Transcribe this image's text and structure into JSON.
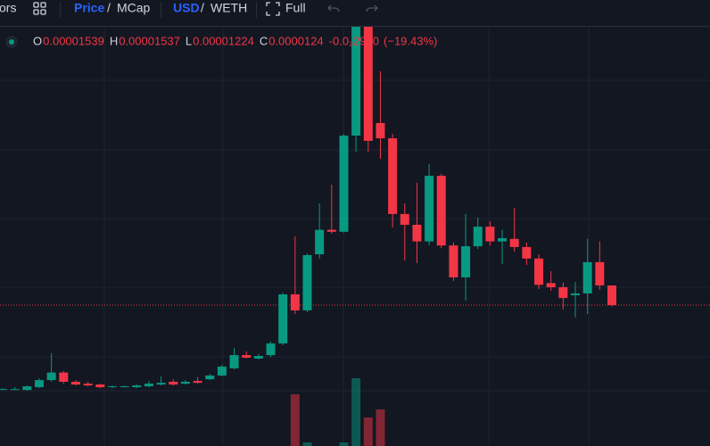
{
  "toolbar": {
    "indicators": "ors",
    "price": "Price",
    "sep1": "/",
    "mcap": "MCap",
    "usd": "USD",
    "sep2": "/",
    "weth": "WETH",
    "full": "Full"
  },
  "chart_data": {
    "type": "candlestick",
    "legend": {
      "labels": [
        "O",
        "H",
        "L",
        "C"
      ],
      "change": "-0.0₂2990",
      "change_pct": "(−19.43%)"
    },
    "log_scale": true,
    "ylim": [
      2.628e-06,
      0.0002656
    ],
    "up_color": "#089981",
    "down_color": "#f23645",
    "open": [
      4.92e-06,
      4.92e-06,
      4.87e-06,
      5.02e-06,
      5.43e-06,
      5.9e-06,
      5.33e-06,
      5.22e-06,
      5.17e-06,
      5.02e-06,
      5.07e-06,
      5.02e-06,
      5.07e-06,
      5.17e-06,
      5.33e-06,
      5.22e-06,
      5.38e-06,
      5.48e-06,
      5.71e-06,
      6.18e-06,
      7.15e-06,
      6.88e-06,
      7.15e-06,
      8.13e-06,
      1.396e-05,
      1.17e-05,
      2.17e-05,
      2.84e-05,
      2.78e-05,
      8.015e-05,
      0.0002656,
      9.2e-05,
      7.78e-05,
      3.38e-05,
      3.002e-05,
      2.5e-05,
      5.15e-05,
      2.39e-05,
      1.682e-05,
      2.37e-05,
      2.94e-05,
      2.5e-05,
      2.57e-05,
      2.35e-05,
      2.07e-05,
      1.58e-05,
      1.509e-05,
      1.382e-05,
      1.41e-05,
      1.99e-05,
      1.539e-05
    ],
    "high": [
      4.97e-06,
      5.02e-06,
      5.12e-06,
      5.54e-06,
      7.3e-06,
      6e-06,
      5.43e-06,
      5.33e-06,
      5.22e-06,
      5.12e-06,
      5.12e-06,
      5.17e-06,
      5.38e-06,
      5.65e-06,
      5.48e-06,
      5.43e-06,
      5.6e-06,
      5.82e-06,
      6.43e-06,
      7.74e-06,
      7.45e-06,
      7.23e-06,
      8.29e-06,
      1.424e-05,
      2.64e-05,
      2.19e-05,
      3.8e-05,
      4.67e-05,
      8.17e-05,
      0.0002656,
      0.0002656,
      0.0001626,
      8.17e-05,
      3.8e-05,
      4.76e-05,
      5.85e-05,
      5.26e-05,
      2.466e-05,
      3.38e-05,
      3.25e-05,
      3.12e-05,
      2.84e-05,
      3.62e-05,
      2.466e-05,
      2.17e-05,
      1.8e-05,
      1.59e-05,
      1.6e-05,
      2.57e-05,
      2.5e-05,
      1.537e-05
    ],
    "low": [
      4.87e-06,
      4.87e-06,
      4.83e-06,
      4.97e-06,
      5.33e-06,
      5.22e-06,
      5.12e-06,
      5.07e-06,
      4.97e-06,
      4.97e-06,
      5.02e-06,
      4.97e-06,
      5.02e-06,
      5.12e-06,
      5.12e-06,
      5.17e-06,
      5.22e-06,
      5.43e-06,
      5.65e-06,
      6.12e-06,
      6.88e-06,
      6.82e-06,
      7.01e-06,
      7.97e-06,
      1.124e-05,
      1.147e-05,
      2.07e-05,
      2.721e-05,
      2.75e-05,
      6.72e-05,
      6.72e-05,
      6.21e-05,
      2.91e-05,
      2.026e-05,
      1.97e-05,
      2.39e-05,
      2.32e-05,
      1.618e-05,
      1.3e-05,
      2.3e-05,
      2.39e-05,
      1.95e-05,
      2.236e-05,
      1.93e-05,
      1.48e-05,
      1.45e-05,
      1.18e-05,
      1.08e-05,
      1.124e-05,
      1.47e-05,
      1.224e-05
    ],
    "close": [
      4.92e-06,
      4.92e-06,
      5.07e-06,
      5.43e-06,
      5.9e-06,
      5.33e-06,
      5.17e-06,
      5.12e-06,
      5.02e-06,
      5.07e-06,
      5.07e-06,
      5.12e-06,
      5.22e-06,
      5.27e-06,
      5.17e-06,
      5.33e-06,
      5.27e-06,
      5.71e-06,
      6.3e-06,
      7.15e-06,
      6.95e-06,
      7.08e-06,
      8.13e-06,
      1.396e-05,
      1.17e-05,
      2.15e-05,
      2.84e-05,
      2.78e-05,
      8.015e-05,
      0.0002656,
      7.56e-05,
      7.78e-05,
      3.38e-05,
      3.002e-05,
      2.5e-05,
      5.15e-05,
      2.39e-05,
      1.682e-05,
      2.37e-05,
      2.94e-05,
      2.5e-05,
      2.59e-05,
      2.35e-05,
      2.07e-05,
      1.55e-05,
      1.509e-05,
      1.34e-05,
      1.41e-05,
      1.99e-05,
      1.54e-05,
      1.24e-05
    ],
    "volume_lim": [
      0,
      100
    ],
    "volume": [
      null,
      null,
      null,
      null,
      null,
      null,
      null,
      null,
      null,
      null,
      null,
      null,
      null,
      null,
      null,
      null,
      null,
      null,
      null,
      null,
      null,
      null,
      null,
      null,
      58,
      4,
      null,
      null,
      4,
      76,
      32,
      41,
      null,
      null,
      null,
      null,
      null,
      null,
      null,
      null,
      null,
      null,
      null,
      null,
      null,
      null,
      null,
      null,
      null,
      null,
      null
    ]
  }
}
